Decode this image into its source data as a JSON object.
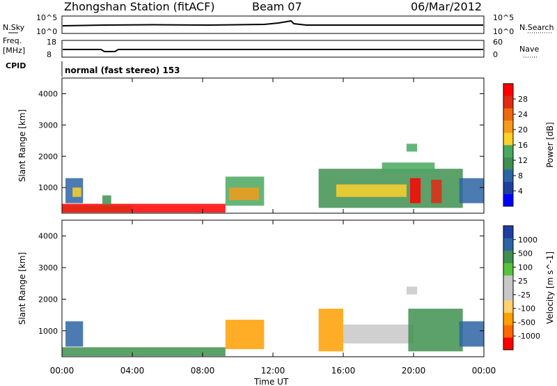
{
  "header": {
    "title": "Zhongshan Station (fitACF)",
    "beam": "Beam 07",
    "date": "06/Mar/2012"
  },
  "strip_labels": {
    "nsky": "N.Sky",
    "nsky_ticks": [
      "10^5",
      "10^0"
    ],
    "nsearch": "N.Search",
    "nsearch_ticks": [
      "10^5",
      "10^0"
    ],
    "freq": "Freq.",
    "freq_unit": "[MHz]",
    "freq_ticks": [
      "18",
      "8"
    ],
    "nave": "Nave",
    "nave_ticks": [
      "60",
      "0"
    ],
    "cpid": "CPID",
    "cpid_value": "normal (fast stereo) 153"
  },
  "chart_data": [
    {
      "type": "heatmap",
      "title": "Power",
      "ylabel": "Slant Range [km]",
      "xlabel": "Time UT",
      "x_ticks": [
        "00:00",
        "04:00",
        "08:00",
        "12:00",
        "16:00",
        "20:00",
        "00:00"
      ],
      "x_range_hours": [
        0,
        24
      ],
      "y_ticks": [
        1000,
        2000,
        3000,
        4000
      ],
      "ylim": [
        180,
        4500
      ],
      "colorbar": {
        "label": "Power [dB]",
        "ticks": [
          "28",
          "24",
          "20",
          "16",
          "12",
          "8",
          "4"
        ],
        "colors": [
          "#0000ff",
          "#1f3f9f",
          "#2d64a4",
          "#3f8f50",
          "#4aa860",
          "#fcd12a",
          "#f39b1b",
          "#ee6a10",
          "#e12a14",
          "#ff0000"
        ]
      },
      "regions": [
        {
          "t": [
            0.0,
            9.3
          ],
          "r": [
            200,
            480
          ],
          "level": 9
        },
        {
          "t": [
            0.0,
            4.0
          ],
          "r": [
            220,
            420
          ],
          "level": 8
        },
        {
          "t": [
            0.2,
            1.2
          ],
          "r": [
            500,
            1300
          ],
          "level": 2
        },
        {
          "t": [
            0.6,
            1.1
          ],
          "r": [
            700,
            1000
          ],
          "level": 5
        },
        {
          "t": [
            2.3,
            2.8
          ],
          "r": [
            450,
            750
          ],
          "level": 3
        },
        {
          "t": [
            9.3,
            11.5
          ],
          "r": [
            420,
            1350
          ],
          "level": 4
        },
        {
          "t": [
            9.5,
            11.2
          ],
          "r": [
            600,
            1000
          ],
          "level": 6
        },
        {
          "t": [
            14.6,
            22.8
          ],
          "r": [
            350,
            1600
          ],
          "level": 3
        },
        {
          "t": [
            15.6,
            19.6
          ],
          "r": [
            700,
            1100
          ],
          "level": 5
        },
        {
          "t": [
            19.8,
            20.4
          ],
          "r": [
            500,
            1300
          ],
          "level": 9
        },
        {
          "t": [
            21.0,
            21.6
          ],
          "r": [
            500,
            1250
          ],
          "level": 8
        },
        {
          "t": [
            19.6,
            20.2
          ],
          "r": [
            2150,
            2400
          ],
          "level": 4
        },
        {
          "t": [
            18.2,
            21.2
          ],
          "r": [
            1500,
            1800
          ],
          "level": 4
        },
        {
          "t": [
            22.6,
            24.0
          ],
          "r": [
            500,
            1300
          ],
          "level": 2
        }
      ]
    },
    {
      "type": "heatmap",
      "title": "Velocity",
      "ylabel": "Slant Range [km]",
      "xlabel": "Time UT",
      "x_ticks": [
        "00:00",
        "04:00",
        "08:00",
        "12:00",
        "16:00",
        "20:00",
        "00:00"
      ],
      "x_range_hours": [
        0,
        24
      ],
      "y_ticks": [
        1000,
        2000,
        3000,
        4000
      ],
      "ylim": [
        180,
        4500
      ],
      "colorbar": {
        "label": "Velocity [m s^-1]",
        "ticks": [
          "1000",
          "500",
          "100",
          "25",
          "-25",
          "-100",
          "-500",
          "-1000"
        ],
        "colors": [
          "#ff0000",
          "#ff6a00",
          "#ff9f00",
          "#ffd070",
          "#c8c8c8",
          "#c8c8c8",
          "#55c43c",
          "#3f8f50",
          "#2d64a4",
          "#1f3f9f"
        ]
      },
      "regions": [
        {
          "t": [
            0.0,
            9.3
          ],
          "r": [
            200,
            480
          ],
          "level": 7
        },
        {
          "t": [
            0.2,
            1.2
          ],
          "r": [
            500,
            1300
          ],
          "level": 8
        },
        {
          "t": [
            9.3,
            11.5
          ],
          "r": [
            420,
            1350
          ],
          "level": 2
        },
        {
          "t": [
            14.6,
            16.0
          ],
          "r": [
            350,
            1700
          ],
          "level": 2
        },
        {
          "t": [
            16.0,
            20.0
          ],
          "r": [
            600,
            1200
          ],
          "level": 4
        },
        {
          "t": [
            19.7,
            22.8
          ],
          "r": [
            350,
            1700
          ],
          "level": 7
        },
        {
          "t": [
            19.6,
            20.2
          ],
          "r": [
            2150,
            2400
          ],
          "level": 4
        },
        {
          "t": [
            22.6,
            24.0
          ],
          "r": [
            500,
            1300
          ],
          "level": 8
        }
      ]
    }
  ]
}
